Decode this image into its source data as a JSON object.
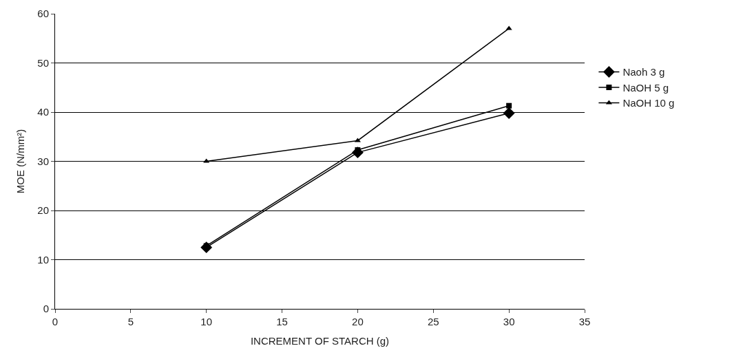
{
  "chart_data": {
    "type": "line",
    "xlabel": "INCREMENT OF STARCH (g)",
    "ylabel": "MOE (N/mm²)",
    "x": [
      10,
      20,
      30
    ],
    "series": [
      {
        "name": "Naoh 3 g",
        "color": "#000000",
        "marker": "diamond",
        "values": [
          12.5,
          31.8,
          39.8
        ]
      },
      {
        "name": "NaOH 5 g",
        "color": "#000000",
        "marker": "square",
        "values": [
          12.8,
          32.3,
          41.3
        ]
      },
      {
        "name": "NaOH 10 g",
        "color": "#000000",
        "marker": "triangle",
        "values": [
          30,
          34.2,
          57
        ]
      }
    ],
    "xlim": [
      0,
      35
    ],
    "xticks": [
      0,
      5,
      10,
      15,
      20,
      25,
      30,
      35
    ],
    "ylim": [
      0,
      60
    ],
    "yticks": [
      0,
      10,
      20,
      30,
      40,
      50,
      60
    ],
    "grid": "y",
    "legend": "right",
    "line_style": "solid"
  }
}
